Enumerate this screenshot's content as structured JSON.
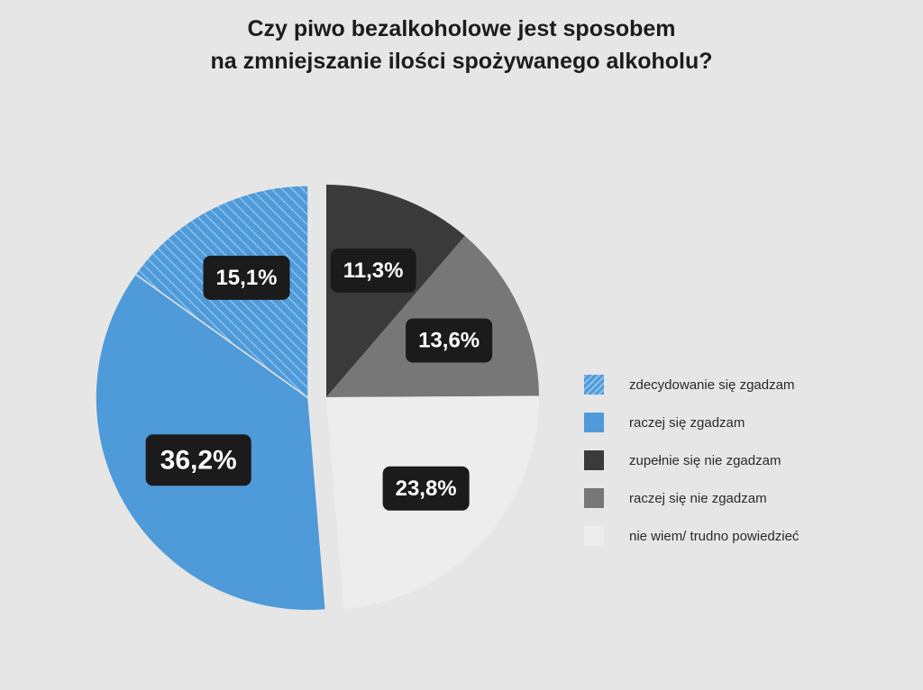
{
  "chart_data": {
    "type": "pie",
    "title_lines": [
      "Czy piwo bezalkoholowe jest sposobem",
      "na zmniejszanie ilości spożywanego alkoholu?"
    ],
    "slices": [
      {
        "label": "zupełnie się nie zgadzam",
        "value": 11.3,
        "display": "11,3%",
        "color": "#3a3a3a",
        "pattern": "solid",
        "exploded": false
      },
      {
        "label": "raczej się nie zgadzam",
        "value": 13.6,
        "display": "13,6%",
        "color": "#777777",
        "pattern": "solid",
        "exploded": false
      },
      {
        "label": "nie wiem/ trudno powiedzieć",
        "value": 23.8,
        "display": "23,8%",
        "color": "#ededed",
        "pattern": "solid",
        "exploded": false
      },
      {
        "label": "raczej się zgadzam",
        "value": 36.2,
        "display": "36,2%",
        "color": "#4f9ad8",
        "pattern": "solid",
        "exploded": true
      },
      {
        "label": "zdecydowanie się zgadzam",
        "value": 15.1,
        "display": "15,1%",
        "color": "#4f9ad8",
        "pattern": "hatched",
        "exploded": true
      }
    ],
    "legend": [
      {
        "label": "zdecydowanie się zgadzam",
        "color": "#4f9ad8",
        "pattern": "hatched"
      },
      {
        "label": "raczej się zgadzam",
        "color": "#4f9ad8",
        "pattern": "solid"
      },
      {
        "label": "zupełnie się nie zgadzam",
        "color": "#3a3a3a",
        "pattern": "solid"
      },
      {
        "label": "raczej się nie zgadzam",
        "color": "#777777",
        "pattern": "solid"
      },
      {
        "label": "nie wiem/ trudno powiedzieć",
        "color": "#ededed",
        "pattern": "solid"
      }
    ],
    "legend_position": "right",
    "label_box_color": "#1b1b1b",
    "label_text_color": "#ffffff"
  }
}
